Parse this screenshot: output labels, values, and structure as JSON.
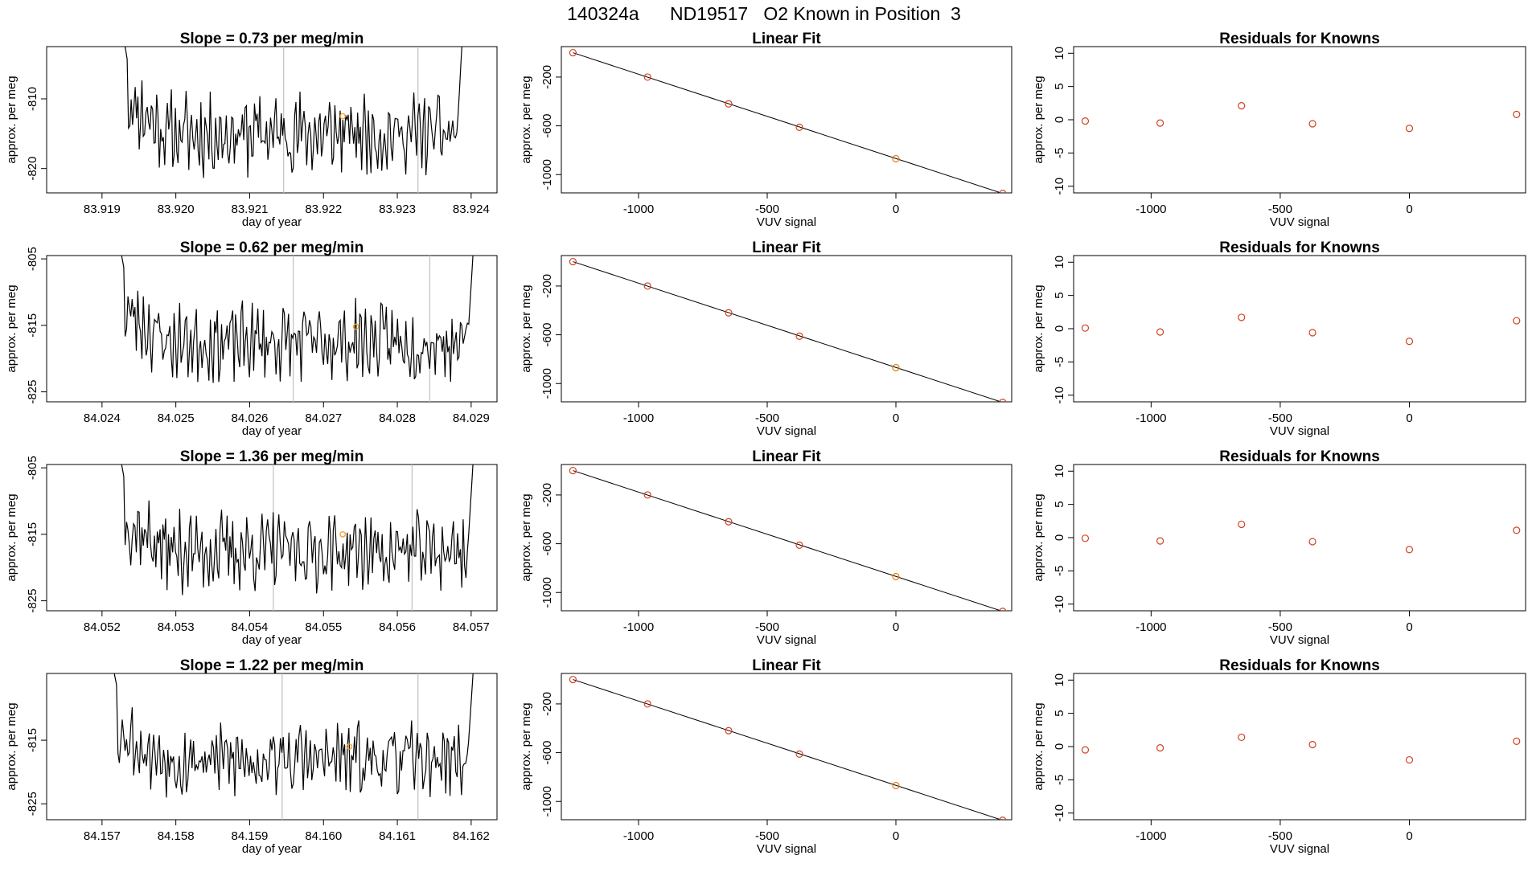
{
  "figure": {
    "title": "140324a      ND19517   O2 Known in Position  3"
  },
  "chart_data": [
    {
      "type": "line",
      "panel": "time-series",
      "row": 1,
      "title": "Slope =  0.73  per meg/min",
      "xlabel": "day of year",
      "ylabel": "approx. per meg",
      "xlim": [
        83.91825,
        83.92435
      ],
      "ylim": [
        -823.5,
        -802.5
      ],
      "xticks": [
        "83.919",
        "83.920",
        "83.921",
        "83.922",
        "83.923",
        "83.924"
      ],
      "xtick_values": [
        83.919,
        83.92,
        83.921,
        83.922,
        83.923,
        83.924
      ],
      "yticks": [
        "-810",
        "-820"
      ],
      "ytick_values": [
        -810,
        -820
      ],
      "vlines": [
        83.92146,
        83.92328
      ],
      "marker": {
        "x": 83.92226,
        "y": -812.5
      },
      "x_start": 83.91925,
      "x_end": 83.92395,
      "noise_seed": 11
    },
    {
      "type": "line",
      "panel": "linear-fit",
      "row": 1,
      "title": "Linear Fit",
      "xlabel": "VUV signal",
      "ylabel": "approx. per meg",
      "xlim": [
        -1300,
        450
      ],
      "ylim": [
        -1150,
        50
      ],
      "xticks": [
        "-1000",
        "-500",
        "0"
      ],
      "xtick_values": [
        -1000,
        -500,
        0
      ],
      "yticks": [
        "-200",
        "-600",
        "-1000"
      ],
      "ytick_values": [
        -200,
        -600,
        -1000
      ],
      "points": [
        [
          -1255,
          0
        ],
        [
          -965,
          -200
        ],
        [
          -650,
          -420
        ],
        [
          -375,
          -612
        ],
        [
          0,
          -870
        ],
        [
          415,
          -1155
        ]
      ],
      "line": [
        [
          -1255,
          0
        ],
        [
          415,
          -1155
        ]
      ]
    },
    {
      "type": "scatter",
      "panel": "residuals",
      "row": 1,
      "title": "Residuals for Knowns",
      "xlabel": "VUV signal",
      "ylabel": "approx. per meg",
      "xlim": [
        -1300,
        450
      ],
      "ylim": [
        -11,
        11
      ],
      "xticks": [
        "-1000",
        "-500",
        "0"
      ],
      "xtick_values": [
        -1000,
        -500,
        0
      ],
      "yticks": [
        "-10",
        "-5",
        "0",
        "5",
        "10"
      ],
      "ytick_values": [
        -10,
        -5,
        0,
        5,
        10
      ],
      "points": [
        [
          -1255,
          -0.2
        ],
        [
          -965,
          -0.5
        ],
        [
          -650,
          2.1
        ],
        [
          -375,
          -0.6
        ],
        [
          0,
          -1.3
        ],
        [
          415,
          0.8
        ]
      ]
    },
    {
      "type": "line",
      "panel": "time-series",
      "row": 2,
      "title": "Slope =  0.62  per meg/min",
      "xlabel": "day of year",
      "ylabel": "approx. per meg",
      "xlim": [
        84.02325,
        84.02935
      ],
      "ylim": [
        -826.5,
        -804.5
      ],
      "xticks": [
        "84.024",
        "84.025",
        "84.026",
        "84.027",
        "84.028",
        "84.029"
      ],
      "xtick_values": [
        84.024,
        84.025,
        84.026,
        84.027,
        84.028,
        84.029
      ],
      "yticks": [
        "-805",
        "-815",
        "-825"
      ],
      "ytick_values": [
        -805,
        -815,
        -825
      ],
      "vlines": [
        84.02659,
        84.02844
      ],
      "marker": {
        "x": 84.02744,
        "y": -815.2
      },
      "x_start": 84.0242,
      "x_end": 84.0291,
      "noise_seed": 23
    },
    {
      "type": "line",
      "panel": "linear-fit",
      "row": 2,
      "title": "Linear Fit",
      "xlabel": "VUV signal",
      "ylabel": "approx. per meg",
      "xlim": [
        -1300,
        450
      ],
      "ylim": [
        -1150,
        50
      ],
      "xticks": [
        "-1000",
        "-500",
        "0"
      ],
      "xtick_values": [
        -1000,
        -500,
        0
      ],
      "yticks": [
        "-200",
        "-600",
        "-1000"
      ],
      "ytick_values": [
        -200,
        -600,
        -1000
      ],
      "points": [
        [
          -1255,
          0
        ],
        [
          -965,
          -200
        ],
        [
          -650,
          -420
        ],
        [
          -375,
          -612
        ],
        [
          0,
          -870
        ],
        [
          415,
          -1155
        ]
      ],
      "line": [
        [
          -1255,
          0
        ],
        [
          415,
          -1155
        ]
      ]
    },
    {
      "type": "scatter",
      "panel": "residuals",
      "row": 2,
      "title": "Residuals for Knowns",
      "xlabel": "VUV signal",
      "ylabel": "approx. per meg",
      "xlim": [
        -1300,
        450
      ],
      "ylim": [
        -11,
        11
      ],
      "xticks": [
        "-1000",
        "-500",
        "0"
      ],
      "xtick_values": [
        -1000,
        -500,
        0
      ],
      "yticks": [
        "-10",
        "-5",
        "0",
        "5",
        "10"
      ],
      "ytick_values": [
        -10,
        -5,
        0,
        5,
        10
      ],
      "points": [
        [
          -1255,
          0.1
        ],
        [
          -965,
          -0.5
        ],
        [
          -650,
          1.7
        ],
        [
          -375,
          -0.6
        ],
        [
          0,
          -1.9
        ],
        [
          415,
          1.2
        ]
      ]
    },
    {
      "type": "line",
      "panel": "time-series",
      "row": 3,
      "title": "Slope =  1.36  per meg/min",
      "xlabel": "day of year",
      "ylabel": "approx. per meg",
      "xlim": [
        84.05125,
        84.05735
      ],
      "ylim": [
        -826.5,
        -804.5
      ],
      "xticks": [
        "84.052",
        "84.053",
        "84.054",
        "84.055",
        "84.056",
        "84.057"
      ],
      "xtick_values": [
        84.052,
        84.053,
        84.054,
        84.055,
        84.056,
        84.057
      ],
      "yticks": [
        "-805",
        "-815",
        "-825"
      ],
      "ytick_values": [
        -805,
        -815,
        -825
      ],
      "vlines": [
        84.05432,
        84.0562
      ],
      "marker": {
        "x": 84.05526,
        "y": -815
      },
      "x_start": 84.0522,
      "x_end": 84.0571,
      "noise_seed": 37
    },
    {
      "type": "line",
      "panel": "linear-fit",
      "row": 3,
      "title": "Linear Fit",
      "xlabel": "VUV signal",
      "ylabel": "approx. per meg",
      "xlim": [
        -1300,
        450
      ],
      "ylim": [
        -1150,
        50
      ],
      "xticks": [
        "-1000",
        "-500",
        "0"
      ],
      "xtick_values": [
        -1000,
        -500,
        0
      ],
      "yticks": [
        "-200",
        "-600",
        "-1000"
      ],
      "ytick_values": [
        -200,
        -600,
        -1000
      ],
      "points": [
        [
          -1255,
          0
        ],
        [
          -965,
          -200
        ],
        [
          -650,
          -420
        ],
        [
          -375,
          -612
        ],
        [
          0,
          -870
        ],
        [
          415,
          -1155
        ]
      ],
      "line": [
        [
          -1255,
          0
        ],
        [
          415,
          -1155
        ]
      ]
    },
    {
      "type": "scatter",
      "panel": "residuals",
      "row": 3,
      "title": "Residuals for Knowns",
      "xlabel": "VUV signal",
      "ylabel": "approx. per meg",
      "xlim": [
        -1300,
        450
      ],
      "ylim": [
        -11,
        11
      ],
      "xticks": [
        "-1000",
        "-500",
        "0"
      ],
      "xtick_values": [
        -1000,
        -500,
        0
      ],
      "yticks": [
        "-10",
        "-5",
        "0",
        "5",
        "10"
      ],
      "ytick_values": [
        -10,
        -5,
        0,
        5,
        10
      ],
      "points": [
        [
          -1255,
          -0.1
        ],
        [
          -965,
          -0.5
        ],
        [
          -650,
          2.0
        ],
        [
          -375,
          -0.6
        ],
        [
          0,
          -1.8
        ],
        [
          415,
          1.1
        ]
      ]
    },
    {
      "type": "line",
      "panel": "time-series",
      "row": 4,
      "title": "Slope =  1.22  per meg/min",
      "xlabel": "day of year",
      "ylabel": "approx. per meg",
      "xlim": [
        84.15625,
        84.16235
      ],
      "ylim": [
        -827.5,
        -804.5
      ],
      "xticks": [
        "84.157",
        "84.158",
        "84.159",
        "84.160",
        "84.161",
        "84.162"
      ],
      "xtick_values": [
        84.157,
        84.158,
        84.159,
        84.16,
        84.161,
        84.162
      ],
      "yticks": [
        "-815",
        "-825"
      ],
      "ytick_values": [
        -815,
        -825
      ],
      "vlines": [
        84.15944,
        84.16128
      ],
      "marker": {
        "x": 84.16035,
        "y": -816
      },
      "x_start": 84.1571,
      "x_end": 84.1621,
      "noise_seed": 53
    },
    {
      "type": "line",
      "panel": "linear-fit",
      "row": 4,
      "title": "Linear Fit",
      "xlabel": "VUV signal",
      "ylabel": "approx. per meg",
      "xlim": [
        -1300,
        450
      ],
      "ylim": [
        -1150,
        50
      ],
      "xticks": [
        "-1000",
        "-500",
        "0"
      ],
      "xtick_values": [
        -1000,
        -500,
        0
      ],
      "yticks": [
        "-200",
        "-600",
        "-1000"
      ],
      "ytick_values": [
        -200,
        -600,
        -1000
      ],
      "points": [
        [
          -1255,
          0
        ],
        [
          -965,
          -200
        ],
        [
          -650,
          -420
        ],
        [
          -375,
          -612
        ],
        [
          0,
          -870
        ],
        [
          415,
          -1155
        ]
      ],
      "line": [
        [
          -1255,
          0
        ],
        [
          415,
          -1155
        ]
      ]
    },
    {
      "type": "scatter",
      "panel": "residuals",
      "row": 4,
      "title": "Residuals for Knowns",
      "xlabel": "VUV signal",
      "ylabel": "approx. per meg",
      "xlim": [
        -1300,
        450
      ],
      "ylim": [
        -11,
        11
      ],
      "xticks": [
        "-1000",
        "-500",
        "0"
      ],
      "xtick_values": [
        -1000,
        -500,
        0
      ],
      "yticks": [
        "-10",
        "-5",
        "0",
        "5",
        "10"
      ],
      "ytick_values": [
        -10,
        -5,
        0,
        5,
        10
      ],
      "points": [
        [
          -1255,
          -0.5
        ],
        [
          -965,
          -0.2
        ],
        [
          -650,
          1.4
        ],
        [
          -375,
          0.3
        ],
        [
          0,
          -2.0
        ],
        [
          415,
          0.8
        ]
      ]
    }
  ],
  "colors": {
    "axis": "#000000",
    "trace": "#000000",
    "vline": "#c0c0c0",
    "marker": "#f0a030",
    "point": "#d04020",
    "last_known": "#e08010"
  }
}
